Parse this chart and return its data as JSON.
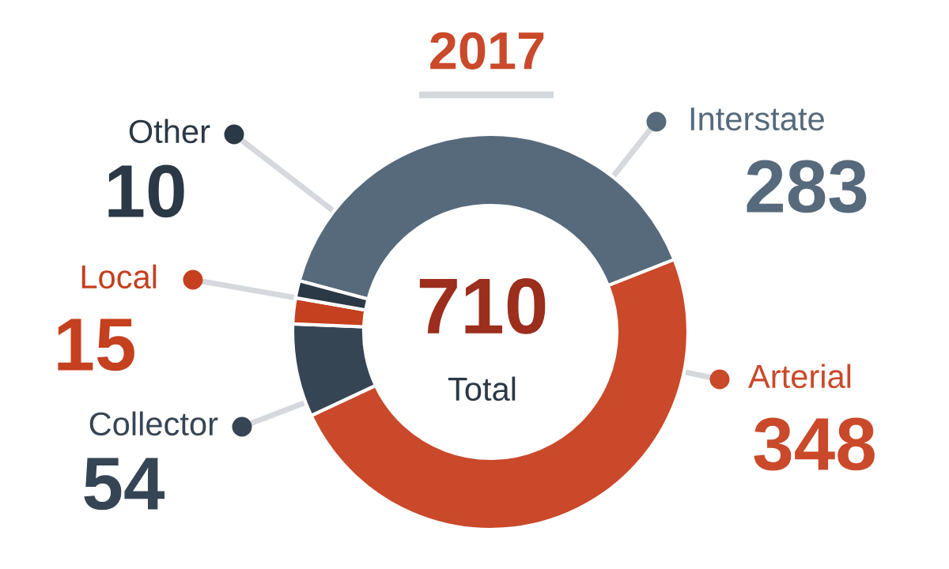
{
  "chart_data": {
    "type": "donut",
    "title": "2017",
    "categories": [
      "Interstate",
      "Arterial",
      "Collector",
      "Local",
      "Other"
    ],
    "values": [
      283,
      348,
      54,
      15,
      10
    ],
    "colors": [
      "#566a7b",
      "#c9492a",
      "#364554",
      "#c4401f",
      "#2b3845"
    ],
    "data_labels": true,
    "legend": "left",
    "annotations": [
      "710",
      "Total"
    ]
  }
}
